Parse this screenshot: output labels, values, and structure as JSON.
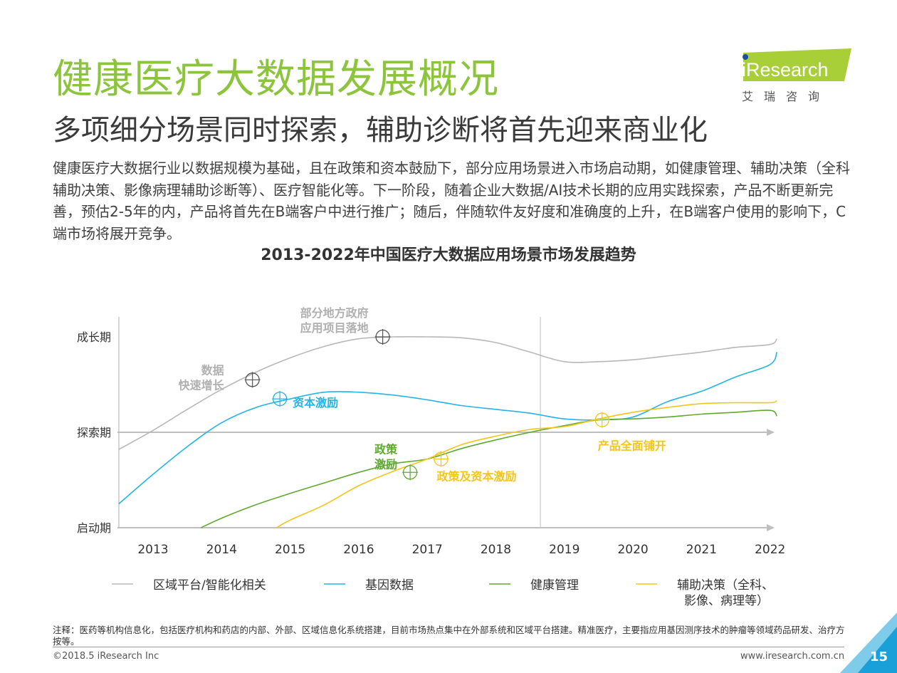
{
  "header": {
    "title": "健康医疗大数据发展概况",
    "subtitle": "多项细分场景同时探索，辅助诊断将首先迎来商业化",
    "intro": "健康医疗大数据行业以数据规模为基础，且在政策和资本鼓励下，部分应用场景进入市场启动期，如健康管理、辅助决策（全科辅助决策、影像病理辅助诊断等）、医疗智能化等。下一阶段，随着企业大数据/AI技术长期的应用实践探索，产品不断更新完善，预估2-5年的内，产品将首先在B端客户中进行推广；随后，伴随软件友好度和准确度的上升，在B端客户使用的影响下，C端市场将展开竞争。"
  },
  "logo": {
    "brand": "iResearch",
    "cn": "艾瑞咨询"
  },
  "chart_data": {
    "type": "line",
    "title": "2013-2022年中国医疗大数据应用场景市场发展趋势",
    "x": [
      "2013",
      "2014",
      "2015",
      "2016",
      "2017",
      "2018",
      "2019",
      "2020",
      "2021",
      "2022"
    ],
    "y_categories": [
      "启动期",
      "探索期",
      "成长期"
    ],
    "ylim": [
      0,
      2
    ],
    "series": [
      {
        "name": "区域平台/智能化相关",
        "color": "#b8b8b8",
        "points": [
          [
            2012.5,
            0.82
          ],
          [
            2013.0,
            1.02
          ],
          [
            2013.5,
            1.24
          ],
          [
            2014.0,
            1.45
          ],
          [
            2014.5,
            1.63
          ],
          [
            2015.0,
            1.78
          ],
          [
            2015.5,
            1.9
          ],
          [
            2016.0,
            1.98
          ],
          [
            2016.5,
            2.0
          ],
          [
            2017.0,
            2.0
          ],
          [
            2017.5,
            1.99
          ],
          [
            2018.0,
            1.94
          ],
          [
            2018.5,
            1.84
          ],
          [
            2019.0,
            1.74
          ],
          [
            2019.5,
            1.74
          ],
          [
            2020.0,
            1.76
          ],
          [
            2020.5,
            1.8
          ],
          [
            2021.0,
            1.84
          ],
          [
            2021.5,
            1.89
          ],
          [
            2022.0,
            1.92
          ],
          [
            2022.1,
            1.98
          ]
        ]
      },
      {
        "name": "基因数据",
        "color": "#25b4e3",
        "points": [
          [
            2012.5,
            0.25
          ],
          [
            2013.0,
            0.56
          ],
          [
            2013.5,
            0.85
          ],
          [
            2014.0,
            1.1
          ],
          [
            2014.5,
            1.26
          ],
          [
            2015.0,
            1.35
          ],
          [
            2015.5,
            1.42
          ],
          [
            2016.0,
            1.42
          ],
          [
            2016.5,
            1.39
          ],
          [
            2017.0,
            1.34
          ],
          [
            2017.5,
            1.28
          ],
          [
            2018.0,
            1.24
          ],
          [
            2018.5,
            1.2
          ],
          [
            2019.0,
            1.14
          ],
          [
            2019.5,
            1.13
          ],
          [
            2020.0,
            1.16
          ],
          [
            2020.5,
            1.32
          ],
          [
            2021.0,
            1.43
          ],
          [
            2021.5,
            1.58
          ],
          [
            2022.0,
            1.71
          ],
          [
            2022.1,
            1.84
          ]
        ]
      },
      {
        "name": "健康管理",
        "color": "#5fa832",
        "points": [
          [
            2013.7,
            0.0
          ],
          [
            2014.0,
            0.1
          ],
          [
            2014.5,
            0.24
          ],
          [
            2015.0,
            0.36
          ],
          [
            2015.5,
            0.47
          ],
          [
            2016.0,
            0.58
          ],
          [
            2016.5,
            0.67
          ],
          [
            2017.0,
            0.72
          ],
          [
            2017.5,
            0.83
          ],
          [
            2018.0,
            0.92
          ],
          [
            2018.5,
            1.0
          ],
          [
            2019.0,
            1.07
          ],
          [
            2019.5,
            1.13
          ],
          [
            2020.0,
            1.14
          ],
          [
            2020.5,
            1.16
          ],
          [
            2021.0,
            1.19
          ],
          [
            2021.5,
            1.21
          ],
          [
            2022.0,
            1.23
          ],
          [
            2022.1,
            1.17
          ]
        ]
      },
      {
        "name": "辅助决策（全科、影像、病理等）",
        "color": "#f3c51a",
        "points": [
          [
            2014.8,
            0.0
          ],
          [
            2015.0,
            0.08
          ],
          [
            2015.5,
            0.24
          ],
          [
            2016.0,
            0.44
          ],
          [
            2016.5,
            0.59
          ],
          [
            2017.0,
            0.72
          ],
          [
            2017.5,
            0.87
          ],
          [
            2018.0,
            0.96
          ],
          [
            2018.5,
            1.03
          ],
          [
            2019.0,
            1.06
          ],
          [
            2019.5,
            1.14
          ],
          [
            2020.0,
            1.21
          ],
          [
            2020.5,
            1.26
          ],
          [
            2021.0,
            1.3
          ],
          [
            2021.5,
            1.31
          ],
          [
            2022.0,
            1.31
          ],
          [
            2022.1,
            1.33
          ]
        ]
      }
    ],
    "markers": [
      {
        "x": 2014.45,
        "y": 1.55,
        "series": 0,
        "label": "数据\n快速增长",
        "color": "#b8b8b8"
      },
      {
        "x": 2016.35,
        "y": 2.0,
        "series": 0,
        "label": "部分地方政府\n应用项目落地",
        "color": "#b8b8b8"
      },
      {
        "x": 2014.85,
        "y": 1.35,
        "series": 1,
        "label": "资本激励",
        "color": "#25b4e3"
      },
      {
        "x": 2016.75,
        "y": 0.58,
        "series": 2,
        "label": "政策\n激励",
        "color": "#5fa832"
      },
      {
        "x": 2017.2,
        "y": 0.72,
        "series": 3,
        "label": "政策及资本激励",
        "color": "#f3c51a"
      },
      {
        "x": 2019.55,
        "y": 1.13,
        "series": 3,
        "label": "产品全面铺开",
        "color": "#f3c51a"
      }
    ],
    "divider_x": 2018.65,
    "legend": [
      {
        "label": "区域平台/智能化相关",
        "color": "#b8b8b8"
      },
      {
        "label": "基因数据",
        "color": "#25b4e3"
      },
      {
        "label": "健康管理",
        "color": "#5fa832"
      },
      {
        "label": "辅助决策（全科、\n影像、病理等）",
        "color": "#f3c51a"
      }
    ]
  },
  "footer": {
    "note": "注释：医药等机构信息化，包括医疗机构和药店的内部、外部、区域信息化系统搭建，目前市场热点集中在外部系统和区域平台搭建。精准医疗，主要指应用基因测序技术的肿瘤等领域药品研发、治疗方按等。",
    "copyright": "©2018.5 iResearch Inc",
    "website": "www.iresearch.com.cn",
    "page": "15"
  }
}
